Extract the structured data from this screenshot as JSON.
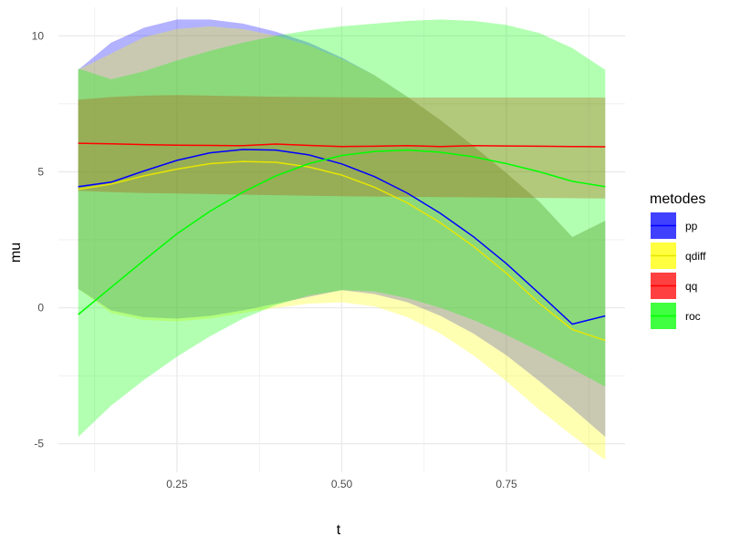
{
  "chart_data": {
    "type": "line",
    "x": [
      0.1,
      0.15,
      0.2,
      0.25,
      0.3,
      0.35,
      0.4,
      0.45,
      0.5,
      0.55,
      0.6,
      0.65,
      0.7,
      0.75,
      0.8,
      0.85,
      0.9
    ],
    "xlabel": "t",
    "ylabel": "mu",
    "xlim": [
      0.07,
      0.93
    ],
    "ylim": [
      -6.05,
      11.05
    ],
    "x_ticks": [
      0.25,
      0.5,
      0.75
    ],
    "x_tick_labels": [
      "0.25",
      "0.50",
      "0.75"
    ],
    "y_ticks": [
      -5,
      0,
      5,
      10
    ],
    "y_tick_labels": [
      "-5",
      "0",
      "5",
      "10"
    ],
    "grid": true,
    "legend": {
      "title": "metodes",
      "position": "right"
    },
    "series": [
      {
        "name": "pp",
        "color": "#0000ff",
        "fill": "#0000ff",
        "values": [
          4.45,
          4.62,
          5.03,
          5.42,
          5.7,
          5.82,
          5.8,
          5.62,
          5.29,
          4.82,
          4.21,
          3.47,
          2.61,
          1.62,
          0.52,
          -0.6,
          -0.3
        ],
        "upper": [
          8.75,
          9.75,
          10.3,
          10.6,
          10.6,
          10.45,
          10.15,
          9.75,
          9.2,
          8.55,
          7.75,
          6.9,
          5.95,
          4.95,
          3.9,
          2.6,
          3.2
        ],
        "lower": [
          0.7,
          -0.1,
          -0.35,
          -0.4,
          -0.3,
          -0.1,
          0.15,
          0.4,
          0.65,
          0.5,
          0.2,
          -0.3,
          -0.95,
          -1.75,
          -2.7,
          -3.7,
          -4.75
        ]
      },
      {
        "name": "qdiff",
        "color": "#e6e600",
        "fill": "#ffff00",
        "values": [
          4.35,
          4.55,
          4.85,
          5.1,
          5.3,
          5.38,
          5.35,
          5.18,
          4.88,
          4.43,
          3.85,
          3.12,
          2.26,
          1.27,
          0.16,
          -0.8,
          -1.2
        ],
        "upper": [
          8.75,
          9.35,
          9.95,
          10.25,
          10.35,
          10.25,
          10.0,
          9.65,
          9.15,
          8.55,
          7.75,
          6.9,
          5.95,
          4.95,
          3.9,
          2.6,
          3.2
        ],
        "lower": [
          0.7,
          -0.2,
          -0.45,
          -0.5,
          -0.4,
          -0.2,
          0.0,
          0.15,
          0.2,
          0.05,
          -0.35,
          -0.95,
          -1.75,
          -2.7,
          -3.75,
          -4.7,
          -5.6
        ]
      },
      {
        "name": "qq",
        "color": "#ff0000",
        "fill": "#ff0000",
        "values": [
          6.05,
          6.03,
          6.0,
          5.98,
          5.97,
          5.96,
          6.02,
          5.97,
          5.93,
          5.94,
          5.96,
          5.93,
          5.96,
          5.95,
          5.94,
          5.93,
          5.92
        ],
        "upper": [
          7.65,
          7.75,
          7.8,
          7.82,
          7.8,
          7.78,
          7.76,
          7.75,
          7.74,
          7.73,
          7.73,
          7.73,
          7.73,
          7.73,
          7.73,
          7.73,
          7.73
        ],
        "lower": [
          4.3,
          4.25,
          4.22,
          4.2,
          4.18,
          4.16,
          4.14,
          4.12,
          4.1,
          4.09,
          4.08,
          4.07,
          4.06,
          4.05,
          4.04,
          4.03,
          4.02
        ]
      },
      {
        "name": "roc",
        "color": "#00ff00",
        "fill": "#00ff00",
        "values": [
          -0.25,
          0.75,
          1.75,
          2.72,
          3.55,
          4.25,
          4.85,
          5.3,
          5.6,
          5.75,
          5.8,
          5.72,
          5.55,
          5.3,
          5.0,
          4.65,
          4.45
        ],
        "upper": [
          8.8,
          8.4,
          8.7,
          9.1,
          9.45,
          9.75,
          10.0,
          10.2,
          10.35,
          10.45,
          10.55,
          10.6,
          10.55,
          10.4,
          10.1,
          9.55,
          8.75
        ],
        "lower": [
          -4.75,
          -3.6,
          -2.65,
          -1.8,
          -1.05,
          -0.4,
          0.1,
          0.45,
          0.65,
          0.6,
          0.35,
          0.0,
          -0.45,
          -1.0,
          -1.6,
          -2.25,
          -2.9
        ]
      }
    ]
  }
}
